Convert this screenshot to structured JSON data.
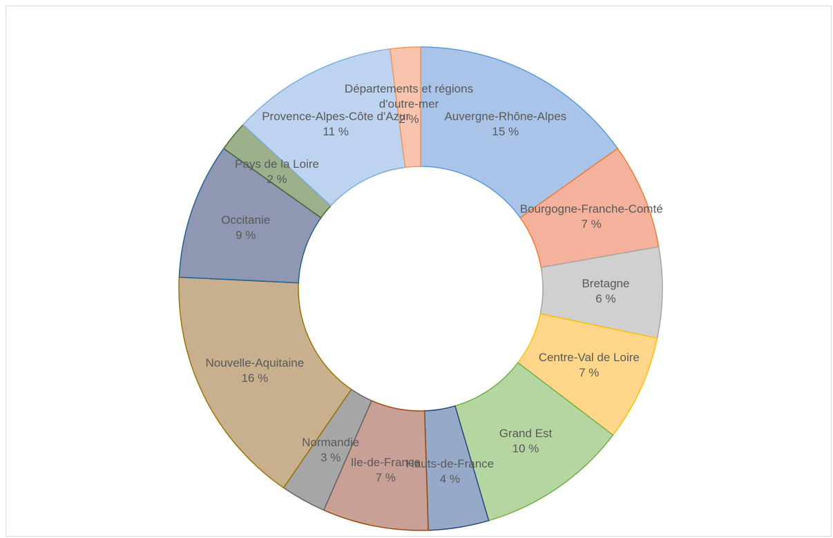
{
  "chart_data": {
    "type": "donut",
    "categories": [
      "Auvergne-Rhône-Alpes",
      "Bourgogne-Franche-Comté",
      "Bretagne",
      "Centre-Val de Loire",
      "Grand Est",
      "Hauts-de-France",
      "Ile-de-France",
      "Normandie",
      "Nouvelle-Aquitaine",
      "Occitanie",
      "Pays de la Loire",
      "Provence-Alpes-Côte d'Azur",
      "Départements et régions d'outre-mer"
    ],
    "values": [
      15,
      7,
      6,
      7,
      10,
      4,
      7,
      3,
      16,
      9,
      2,
      11,
      2
    ],
    "value_labels": [
      "15 %",
      "7 %",
      "6 %",
      "7 %",
      "10 %",
      "4 %",
      "7 %",
      "3 %",
      "16 %",
      "9 %",
      "2 %",
      "11 %",
      "2 %"
    ],
    "colors": [
      "#a9c4e8",
      "#f4b29c",
      "#d0d0d0",
      "#ffd68a",
      "#b5d6a0",
      "#96a9c9",
      "#c9a096",
      "#a6a6a6",
      "#c8b08f",
      "#9097b3",
      "#9cb08c",
      "#bdd3ef",
      "#f8c4ad"
    ],
    "edge_colors": [
      "#5b9bd5",
      "#ed7d31",
      "#a5a5a5",
      "#ffc000",
      "#70ad47",
      "#264478",
      "#9e480e",
      "#636363",
      "#997300",
      "#255e91",
      "#43682b",
      "#7cafdd",
      "#f1975a"
    ]
  }
}
